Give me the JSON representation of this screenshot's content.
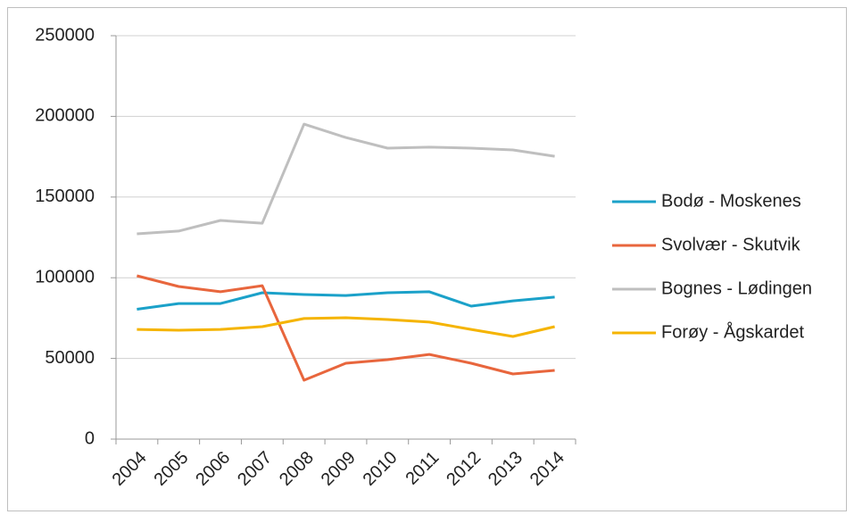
{
  "chart_data": {
    "type": "line",
    "categories": [
      "2004",
      "2005",
      "2006",
      "2007",
      "2008",
      "2009",
      "2010",
      "2011",
      "2012",
      "2013",
      "2014"
    ],
    "series": [
      {
        "name": "Bodø - Moskenes",
        "color": "#1ba1c9",
        "values": [
          80500,
          84000,
          84000,
          90700,
          89600,
          89000,
          90700,
          91300,
          82400,
          85700,
          88000
        ]
      },
      {
        "name": "Svolvær - Skutvik",
        "color": "#e8663d",
        "values": [
          101200,
          94600,
          91300,
          95100,
          36500,
          47000,
          49200,
          52500,
          47000,
          40400,
          42600
        ]
      },
      {
        "name": "Bognes - Lødingen",
        "color": "#bfbfbf",
        "values": [
          127200,
          128900,
          135500,
          133800,
          195200,
          186900,
          180300,
          180900,
          180300,
          179200,
          175300
        ]
      },
      {
        "name": "Forøy - Ågskardet",
        "color": "#f5b400",
        "values": [
          68000,
          67500,
          68000,
          69700,
          74700,
          75200,
          74100,
          72500,
          68000,
          63600,
          69700
        ]
      }
    ],
    "ylim": [
      0,
      250000
    ],
    "yticks": [
      0,
      50000,
      100000,
      150000,
      200000,
      250000
    ],
    "grid": true,
    "legend": "right"
  }
}
